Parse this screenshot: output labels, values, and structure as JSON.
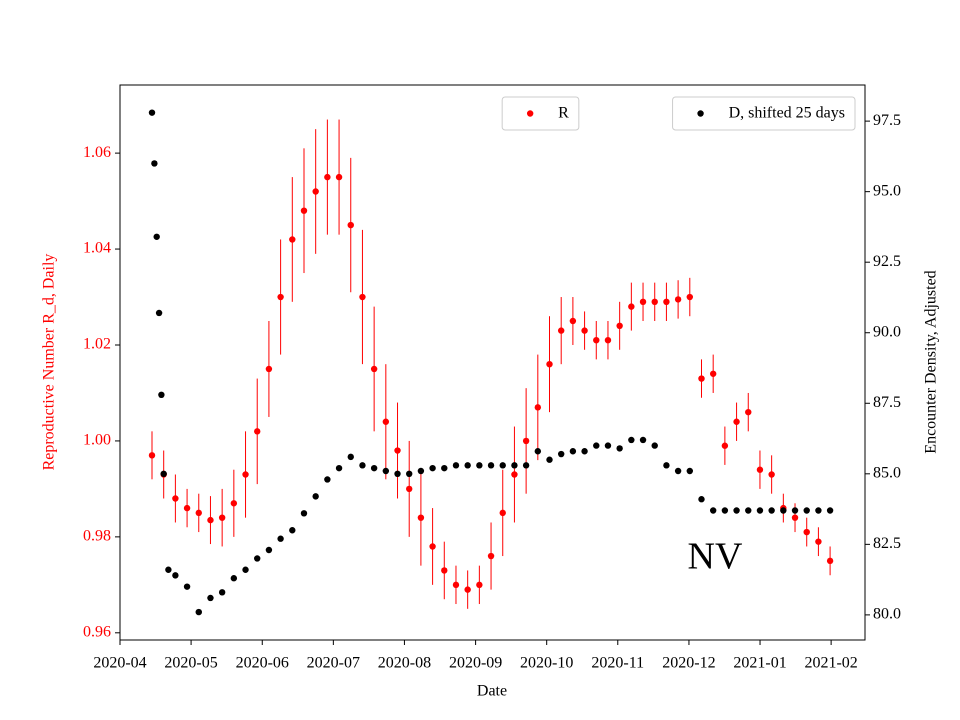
{
  "chart_data": {
    "type": "scatter",
    "xlabel": "Date",
    "ylabel": "Reproductive Number R_d, Daily",
    "y2label": "Encounter Density, Adjusted",
    "annotation": "NV",
    "xlim": [
      2020.25,
      2021.123
    ],
    "xticks": [
      {
        "value": 2020.25,
        "label": "2020-04"
      },
      {
        "value": 2020.3333,
        "label": "2020-05"
      },
      {
        "value": 2020.4167,
        "label": "2020-06"
      },
      {
        "value": 2020.5,
        "label": "2020-07"
      },
      {
        "value": 2020.5833,
        "label": "2020-08"
      },
      {
        "value": 2020.6667,
        "label": "2020-09"
      },
      {
        "value": 2020.75,
        "label": "2020-10"
      },
      {
        "value": 2020.8333,
        "label": "2020-11"
      },
      {
        "value": 2020.9167,
        "label": "2020-12"
      },
      {
        "value": 2021.0,
        "label": "2021-01"
      },
      {
        "value": 2021.0833,
        "label": "2021-02"
      }
    ],
    "ylim": [
      0.9585,
      1.0742
    ],
    "yticks": [
      0.96,
      0.98,
      {
        "value": 1,
        "label": "1.00"
      },
      1.02,
      1.04,
      1.06
    ],
    "ytick_color": "#ff0000",
    "y2lim": [
      79.11,
      98.78
    ],
    "y2ticks": [
      {
        "value": 80,
        "label": "80.0"
      },
      82.5,
      {
        "value": 85,
        "label": "85.0"
      },
      87.5,
      {
        "value": 90,
        "label": "90.0"
      },
      92.5,
      {
        "value": 95,
        "label": "95.0"
      },
      97.5
    ],
    "series": [
      {
        "name": "R",
        "color": "#ff0000",
        "axis": "y",
        "legend": "upper center",
        "x": [
          2020.2875,
          2020.3012,
          2020.3149,
          2020.3286,
          2020.3423,
          2020.356,
          2020.3697,
          2020.3834,
          2020.3971,
          2020.4108,
          2020.4245,
          2020.4382,
          2020.4519,
          2020.4656,
          2020.4793,
          2020.493,
          2020.5067,
          2020.5204,
          2020.5341,
          2020.5478,
          2020.5615,
          2020.5752,
          2020.5889,
          2020.6026,
          2020.6163,
          2020.63,
          2020.6437,
          2020.6574,
          2020.6711,
          2020.6848,
          2020.6985,
          2020.7122,
          2020.7259,
          2020.7396,
          2020.7533,
          2020.767,
          2020.7807,
          2020.7944,
          2020.8081,
          2020.8218,
          2020.8355,
          2020.8492,
          2020.8629,
          2020.8766,
          2020.8903,
          2020.904,
          2020.9177,
          2020.9314,
          2020.9451,
          2020.9588,
          2020.9725,
          2020.9862,
          2020.9999,
          2021.0136,
          2021.0273,
          2021.041,
          2021.0547,
          2021.0684,
          2021.0821
        ],
        "values": [
          0.997,
          0.993,
          0.988,
          0.986,
          0.985,
          0.9835,
          0.984,
          0.987,
          0.993,
          1.002,
          1.015,
          1.03,
          1.042,
          1.048,
          1.052,
          1.055,
          1.055,
          1.045,
          1.03,
          1.015,
          1.004,
          0.998,
          0.99,
          0.984,
          0.978,
          0.973,
          0.97,
          0.969,
          0.97,
          0.976,
          0.985,
          0.993,
          1.0,
          1.007,
          1.016,
          1.023,
          1.025,
          1.023,
          1.021,
          1.021,
          1.024,
          1.028,
          1.029,
          1.029,
          1.029,
          1.0295,
          1.03,
          1.013,
          1.014,
          0.999,
          1.004,
          1.006,
          0.994,
          0.993,
          0.986,
          0.984,
          0.981,
          0.979,
          0.975
        ],
        "errors": [
          0.005,
          0.005,
          0.005,
          0.004,
          0.004,
          0.005,
          0.006,
          0.007,
          0.009,
          0.011,
          0.01,
          0.012,
          0.013,
          0.013,
          0.013,
          0.012,
          0.012,
          0.014,
          0.014,
          0.013,
          0.012,
          0.01,
          0.01,
          0.01,
          0.008,
          0.006,
          0.004,
          0.004,
          0.004,
          0.007,
          0.009,
          0.01,
          0.011,
          0.011,
          0.01,
          0.007,
          0.005,
          0.004,
          0.004,
          0.004,
          0.005,
          0.005,
          0.004,
          0.004,
          0.004,
          0.004,
          0.004,
          0.004,
          0.004,
          0.004,
          0.004,
          0.004,
          0.004,
          0.004,
          0.003,
          0.003,
          0.003,
          0.003,
          0.003
        ]
      },
      {
        "name": "D, shifted 25 days",
        "color": "#000000",
        "axis": "y2",
        "legend": "upper right",
        "x": [
          2020.2875,
          2020.2903,
          2020.293,
          2020.2958,
          2020.2985,
          2020.3012,
          2020.3067,
          2020.3149,
          2020.3286,
          2020.3423,
          2020.356,
          2020.3697,
          2020.3834,
          2020.3971,
          2020.4108,
          2020.4245,
          2020.4382,
          2020.4519,
          2020.4656,
          2020.4793,
          2020.493,
          2020.5067,
          2020.5204,
          2020.5341,
          2020.5478,
          2020.5615,
          2020.5752,
          2020.5889,
          2020.6026,
          2020.6163,
          2020.63,
          2020.6437,
          2020.6574,
          2020.6711,
          2020.6848,
          2020.6985,
          2020.7122,
          2020.7259,
          2020.7396,
          2020.7533,
          2020.767,
          2020.7807,
          2020.7944,
          2020.8081,
          2020.8218,
          2020.8355,
          2020.8492,
          2020.8629,
          2020.8766,
          2020.8903,
          2020.904,
          2020.9177,
          2020.9314,
          2020.9451,
          2020.9588,
          2020.9725,
          2020.9862,
          2020.9999,
          2021.0136,
          2021.0273,
          2021.041,
          2021.0547,
          2021.0684,
          2021.0821
        ],
        "values": [
          97.8,
          96.0,
          93.4,
          90.7,
          87.8,
          85.0,
          81.6,
          81.4,
          81.0,
          80.1,
          80.6,
          80.8,
          81.3,
          81.6,
          82.0,
          82.3,
          82.7,
          83.0,
          83.6,
          84.2,
          84.8,
          85.2,
          85.6,
          85.3,
          85.2,
          85.1,
          85.0,
          85.0,
          85.1,
          85.2,
          85.2,
          85.3,
          85.3,
          85.3,
          85.3,
          85.3,
          85.3,
          85.3,
          85.8,
          85.5,
          85.7,
          85.8,
          85.8,
          86.0,
          86.0,
          85.9,
          86.2,
          86.2,
          86.0,
          85.3,
          85.1,
          85.1,
          84.1,
          83.7,
          83.7,
          83.7,
          83.7,
          83.7,
          83.7,
          83.7,
          83.7,
          83.7,
          83.7,
          83.7
        ]
      }
    ]
  }
}
